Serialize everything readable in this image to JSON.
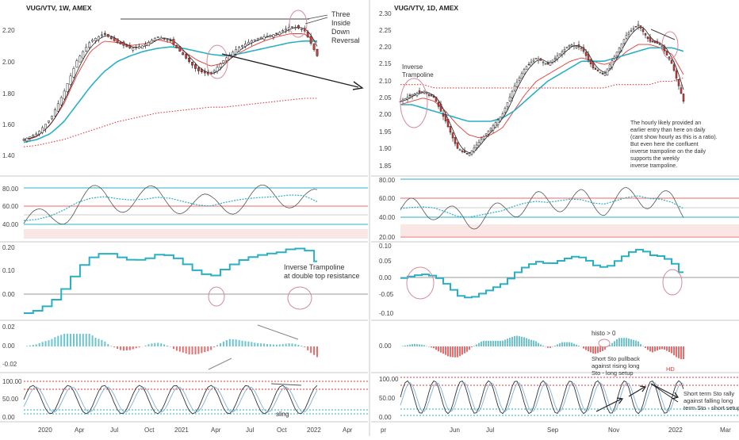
{
  "colors": {
    "up": "#26a69a",
    "down": "#ef5350",
    "teal": "#2ab0c5",
    "red": "#e53935",
    "candle_up": "#ffffff",
    "candle_down": "#e53935",
    "grid_line": "#2ab0c5",
    "hline_red": "#f06a6a",
    "hline_gray": "#7a7a7a",
    "annotation": "#333333",
    "circle": "#d48a9c"
  },
  "left": {
    "title": "VUG/VTV, 1W, AMEX",
    "price_ticks": [
      "2.20",
      "2.00",
      "1.80",
      "1.60",
      "1.40"
    ],
    "rsi_ticks": [
      "80.00",
      "60.00",
      "40.00"
    ],
    "osc1_ticks": [
      "0.20",
      "0.10",
      "0.00"
    ],
    "osc2_ticks": [
      "0.02",
      "0.00",
      "-0.02"
    ],
    "stoch_ticks": [
      "100.00",
      "50.00",
      "0.00"
    ],
    "x_ticks": [
      "2020",
      "Apr",
      "Jul",
      "Oct",
      "2021",
      "Apr",
      "Jul",
      "Oct",
      "2022",
      "Apr"
    ],
    "annotations": {
      "three_inside": [
        "Three",
        "Inside",
        "Down",
        "Reversal"
      ],
      "inverse_trampoline": [
        "Inverse Trampoline",
        "at double top resistance"
      ],
      "sling": "sling"
    }
  },
  "right": {
    "title": "VUG/VTV, 1D, AMEX",
    "price_ticks": [
      "2.30",
      "2.25",
      "2.20",
      "2.15",
      "2.10",
      "2.05",
      "2.00",
      "1.95",
      "1.90",
      "1.85"
    ],
    "rsi_ticks": [
      "80.00",
      "60.00",
      "40.00",
      "20.00"
    ],
    "osc1_ticks": [
      "0.10",
      "0.05",
      "0.00",
      "-0.05",
      "-0.10"
    ],
    "osc2_ticks": [
      "0.00"
    ],
    "stoch_ticks": [
      "100.00",
      "50.00",
      "0.00"
    ],
    "x_ticks": [
      "pr",
      "Jun",
      "Jul",
      "Sep",
      "Nov",
      "2022",
      "Mar"
    ],
    "annotations": {
      "inverse_trampoline": [
        "Inverse",
        "Trampoline"
      ],
      "note": [
        "The hourly likely provided an",
        "earlier entry than here on daily",
        "(cant show hourly as this is a ratio).",
        "But even here the confluent",
        "inverse trampoline on the daily",
        "supports the weekly",
        "inverse trampoline."
      ],
      "histo": "histo > 0",
      "short_sto": [
        "Short Sto pullback",
        "against rising long",
        "Sto - long setup"
      ],
      "hd": "HD",
      "short_term": [
        "Short term Sto rally",
        "against falling long",
        "term Sto - short setup"
      ]
    }
  },
  "chart_data": [
    {
      "type": "line",
      "title": "VUG/VTV, 1W, AMEX",
      "note": "weekly candles with 3 moving averages and a 200-period dotted MA",
      "x_labels": [
        "2020",
        "Apr",
        "Jul",
        "Oct",
        "2021",
        "Apr",
        "Jul",
        "Oct",
        "2022"
      ],
      "ylim": [
        1.35,
        2.3
      ],
      "series": [
        {
          "values": [
            1.48,
            1.52,
            1.62,
            1.8,
            2.02,
            2.15,
            2.2,
            2.14,
            2.1,
            2.12,
            2.18,
            2.15,
            2.05,
            1.95,
            1.92,
            2.02,
            2.1,
            2.15,
            2.18,
            2.2,
            2.25,
            2.23,
            2.05
          ]
        },
        {
          "values": [
            1.47,
            1.5,
            1.58,
            1.72,
            1.92,
            2.08,
            2.15,
            2.14,
            2.12,
            2.13,
            2.16,
            2.14,
            2.08,
            2.02,
            1.98,
            2.0,
            2.06,
            2.11,
            2.15,
            2.18,
            2.2,
            2.2,
            2.14
          ]
        },
        {
          "values": [
            1.46,
            1.48,
            1.52,
            1.6,
            1.72,
            1.84,
            1.94,
            2.01,
            2.05,
            2.08,
            2.1,
            2.11,
            2.1,
            2.08,
            2.06,
            2.05,
            2.06,
            2.08,
            2.1,
            2.12,
            2.14,
            2.15,
            2.15
          ]
        },
        {
          "values": [
            1.43,
            1.44,
            1.46,
            1.48,
            1.51,
            1.54,
            1.57,
            1.6,
            1.62,
            1.64,
            1.66,
            1.67,
            1.68,
            1.69,
            1.7,
            1.7,
            1.71,
            1.72,
            1.73,
            1.74,
            1.75,
            1.76,
            1.76
          ]
        }
      ]
    },
    {
      "type": "line",
      "title": "VUG/VTV, 1D, AMEX",
      "x_labels": [
        "Jun",
        "Jul",
        "Sep",
        "Nov",
        "2022"
      ],
      "ylim": [
        1.84,
        2.31
      ],
      "series": [
        {
          "values": [
            2.04,
            2.06,
            2.07,
            2.05,
            1.98,
            1.9,
            1.88,
            1.92,
            1.96,
            2.0,
            2.08,
            2.14,
            2.17,
            2.15,
            2.18,
            2.21,
            2.2,
            2.14,
            2.12,
            2.18,
            2.24,
            2.27,
            2.22,
            2.21,
            2.15,
            2.04
          ]
        },
        {
          "values": [
            2.03,
            2.04,
            2.05,
            2.04,
            2.01,
            1.97,
            1.94,
            1.93,
            1.94,
            1.96,
            2.01,
            2.06,
            2.1,
            2.12,
            2.14,
            2.16,
            2.17,
            2.16,
            2.15,
            2.16,
            2.19,
            2.21,
            2.21,
            2.2,
            2.18,
            2.12
          ]
        },
        {
          "values": [
            2.03,
            2.03,
            2.02,
            2.01,
            2.0,
            1.99,
            1.98,
            1.98,
            1.98,
            1.99,
            2.01,
            2.04,
            2.07,
            2.1,
            2.12,
            2.14,
            2.16,
            2.16,
            2.16,
            2.17,
            2.18,
            2.19,
            2.2,
            2.2,
            2.2,
            2.19
          ]
        },
        {
          "values": [
            2.09,
            2.09,
            2.09,
            2.08,
            2.08,
            2.08,
            2.08,
            2.08,
            2.08,
            2.08,
            2.08,
            2.08,
            2.08,
            2.08,
            2.08,
            2.08,
            2.08,
            2.08,
            2.08,
            2.09,
            2.09,
            2.09,
            2.09,
            2.1,
            2.1,
            2.11
          ]
        }
      ]
    }
  ]
}
